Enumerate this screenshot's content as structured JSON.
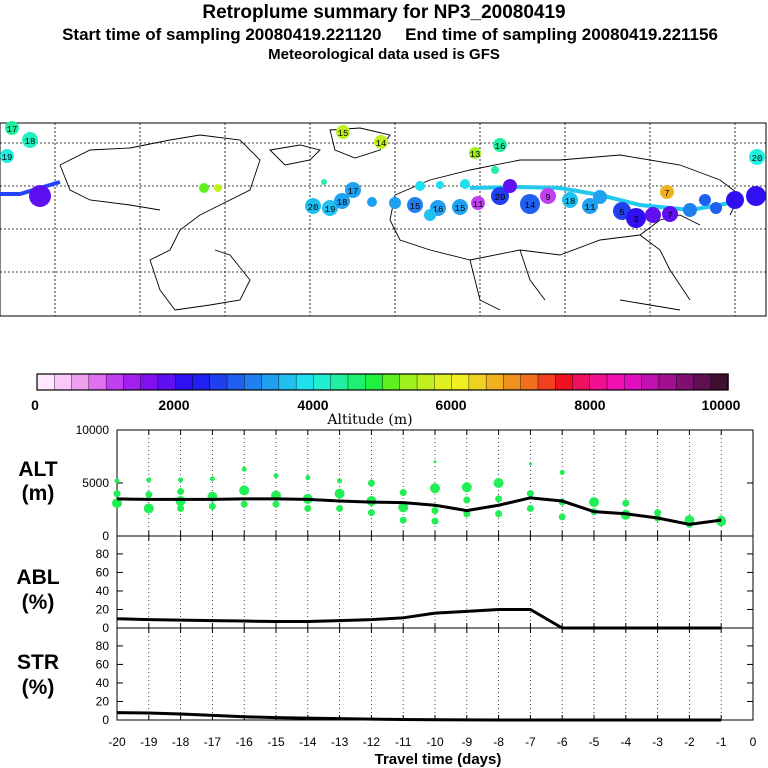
{
  "header": {
    "title": "Retroplume summary for NP3_20080419",
    "start_label": "Start time of sampling 20080419.221120",
    "end_label": "End time of sampling 20080419.221156",
    "met_label": "Meteorological data used is GFS"
  },
  "colors": {
    "dot": "#22ee55",
    "line": "#000000",
    "track_cyan": "#22c8ee",
    "track_blue": "#2244ff"
  },
  "map": {
    "track_day_labels": [
      "1",
      "2",
      "3",
      "4",
      "5",
      "6",
      "7",
      "8",
      "9",
      "10",
      "11",
      "12",
      "13",
      "14",
      "15",
      "16",
      "17",
      "18",
      "19",
      "20"
    ]
  },
  "colorbar": {
    "ticks": [
      "0",
      "2000",
      "4000",
      "6000",
      "8000",
      "10000"
    ],
    "label": "Altitude (m)",
    "colors": [
      "#ffe8ff",
      "#f8c8f8",
      "#f0a0f0",
      "#e070f0",
      "#c040f0",
      "#a020f0",
      "#8010f0",
      "#6010f0",
      "#3010f0",
      "#2020f0",
      "#2040f0",
      "#2060f0",
      "#2080f0",
      "#20a0f0",
      "#20c0f0",
      "#20e0f0",
      "#20f0d0",
      "#20f0a0",
      "#20f070",
      "#20f040",
      "#60f020",
      "#a0f020",
      "#c0f020",
      "#e0f020",
      "#f0f020",
      "#f0d020",
      "#f0b020",
      "#f09020",
      "#f07020",
      "#f04020",
      "#f01020",
      "#f01060",
      "#f01090",
      "#f010b0",
      "#e010c0",
      "#c010b0",
      "#a01090",
      "#801070",
      "#601050",
      "#401030"
    ]
  },
  "chart_data": [
    {
      "type": "line",
      "panel": "ALT",
      "title": "ALT",
      "ylabel": "(m)",
      "ylim": [
        0,
        10000
      ],
      "yticks": [
        0,
        5000,
        10000
      ],
      "x": [
        -20,
        -19,
        -18,
        -17,
        -16,
        -15,
        -14,
        -13,
        -12,
        -11,
        -10,
        -9,
        -8,
        -7,
        -6,
        -5,
        -4,
        -3,
        -2,
        -1
      ],
      "values": [
        3500,
        3450,
        3450,
        3450,
        3500,
        3500,
        3450,
        3300,
        3200,
        3150,
        2900,
        2400,
        2900,
        3600,
        3300,
        2300,
        2100,
        1700,
        1100,
        1500
      ],
      "scatter": [
        {
          "x": -20,
          "y": 5200
        },
        {
          "x": -20,
          "y": 4000
        },
        {
          "x": -20,
          "y": 3100
        },
        {
          "x": -19,
          "y": 5300
        },
        {
          "x": -19,
          "y": 3900
        },
        {
          "x": -19,
          "y": 2600
        },
        {
          "x": -18,
          "y": 5300
        },
        {
          "x": -18,
          "y": 4200
        },
        {
          "x": -18,
          "y": 3300
        },
        {
          "x": -18,
          "y": 2600
        },
        {
          "x": -17,
          "y": 5400
        },
        {
          "x": -17,
          "y": 3700
        },
        {
          "x": -17,
          "y": 2800
        },
        {
          "x": -16,
          "y": 6300
        },
        {
          "x": -16,
          "y": 4300
        },
        {
          "x": -16,
          "y": 3000
        },
        {
          "x": -15,
          "y": 5700
        },
        {
          "x": -15,
          "y": 3800
        },
        {
          "x": -15,
          "y": 3000
        },
        {
          "x": -14,
          "y": 5500
        },
        {
          "x": -14,
          "y": 3500
        },
        {
          "x": -14,
          "y": 2600
        },
        {
          "x": -13,
          "y": 5200
        },
        {
          "x": -13,
          "y": 4000
        },
        {
          "x": -13,
          "y": 2600
        },
        {
          "x": -12,
          "y": 5000
        },
        {
          "x": -12,
          "y": 3300
        },
        {
          "x": -12,
          "y": 2200
        },
        {
          "x": -11,
          "y": 4100
        },
        {
          "x": -11,
          "y": 2700
        },
        {
          "x": -11,
          "y": 1500
        },
        {
          "x": -10,
          "y": 7000
        },
        {
          "x": -10,
          "y": 4500
        },
        {
          "x": -10,
          "y": 2400
        },
        {
          "x": -10,
          "y": 1400
        },
        {
          "x": -9,
          "y": 4600
        },
        {
          "x": -9,
          "y": 3400
        },
        {
          "x": -9,
          "y": 2100
        },
        {
          "x": -8,
          "y": 5000
        },
        {
          "x": -8,
          "y": 3500
        },
        {
          "x": -8,
          "y": 2100
        },
        {
          "x": -7,
          "y": 6800
        },
        {
          "x": -7,
          "y": 4000
        },
        {
          "x": -7,
          "y": 2600
        },
        {
          "x": -6,
          "y": 6000
        },
        {
          "x": -6,
          "y": 3200
        },
        {
          "x": -6,
          "y": 1800
        },
        {
          "x": -5,
          "y": 3200
        },
        {
          "x": -5,
          "y": 2300
        },
        {
          "x": -4,
          "y": 3100
        },
        {
          "x": -4,
          "y": 2000
        },
        {
          "x": -3,
          "y": 2200
        },
        {
          "x": -3,
          "y": 1700
        },
        {
          "x": -2,
          "y": 1500
        },
        {
          "x": -2,
          "y": 1100
        },
        {
          "x": -1,
          "y": 1600
        },
        {
          "x": -1,
          "y": 1400
        }
      ]
    },
    {
      "type": "line",
      "panel": "ABL",
      "title": "ABL",
      "ylabel": "(%)",
      "ylim": [
        0,
        95
      ],
      "yticks": [
        0,
        20,
        40,
        60,
        80
      ],
      "x": [
        -20,
        -19,
        -18,
        -17,
        -16,
        -15,
        -14,
        -13,
        -12,
        -11,
        -10,
        -9,
        -8,
        -7,
        -6,
        -5,
        -4,
        -3,
        -2,
        -1
      ],
      "values": [
        10,
        9,
        8.5,
        8,
        7.5,
        7,
        7,
        8,
        9,
        11,
        16,
        18,
        20,
        20,
        0,
        0,
        0,
        0,
        0,
        0
      ]
    },
    {
      "type": "line",
      "panel": "STR",
      "title": "STR",
      "ylabel": "(%)",
      "ylim": [
        0,
        95
      ],
      "yticks": [
        0,
        20,
        40,
        60,
        80
      ],
      "x": [
        -20,
        -19,
        -18,
        -17,
        -16,
        -15,
        -14,
        -13,
        -12,
        -11,
        -10,
        -9,
        -8,
        -7,
        -6,
        -5,
        -4,
        -3,
        -2,
        -1
      ],
      "values": [
        8,
        7.5,
        6.5,
        5,
        3.5,
        2.5,
        2,
        1.5,
        1,
        0.5,
        0.3,
        0.2,
        0,
        0,
        0,
        0,
        0,
        0,
        0,
        0
      ]
    }
  ],
  "xaxis": {
    "ticks": [
      "-20",
      "-19",
      "-18",
      "-17",
      "-16",
      "-15",
      "-14",
      "-13",
      "-12",
      "-11",
      "-10",
      "-9",
      "-8",
      "-7",
      "-6",
      "-5",
      "-4",
      "-3",
      "-2",
      "-1",
      "0"
    ],
    "label": "Travel time (days)"
  }
}
